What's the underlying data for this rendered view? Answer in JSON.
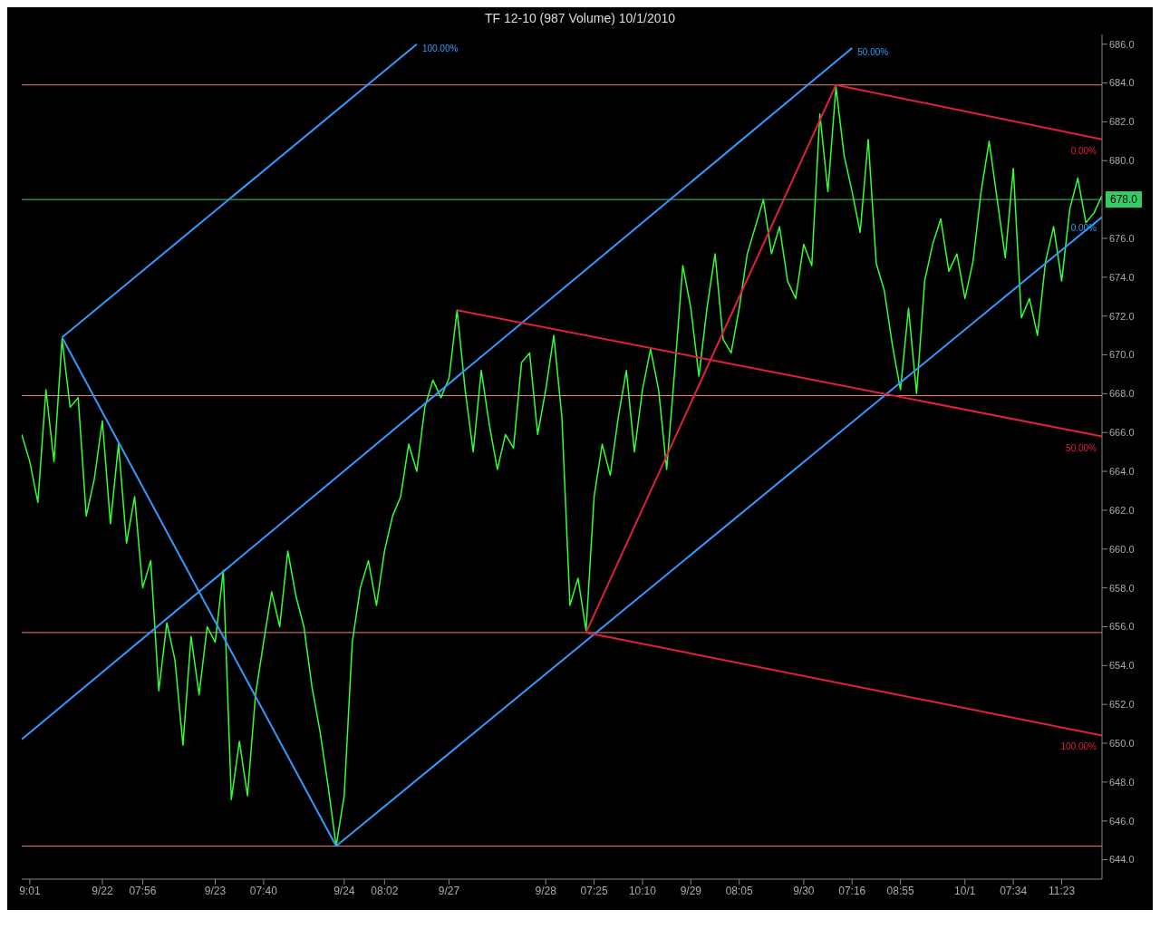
{
  "chart_data": {
    "type": "line",
    "title": "TF 12-10 (987 Volume)  10/1/2010",
    "categories": [
      null,
      "9:01",
      null,
      null,
      null,
      null,
      null,
      null,
      null,
      null,
      "9/22",
      null,
      null,
      null,
      null,
      "07:56",
      null,
      null,
      null,
      null,
      null,
      null,
      null,
      null,
      "9/23",
      null,
      null,
      null,
      null,
      null,
      "07:40",
      null,
      null,
      null,
      null,
      null,
      null,
      null,
      null,
      null,
      "9/24",
      null,
      null,
      null,
      null,
      "08:02",
      null,
      null,
      null,
      null,
      null,
      null,
      null,
      "9/27",
      null,
      null,
      null,
      null,
      null,
      null,
      null,
      null,
      null,
      null,
      null,
      "9/28",
      null,
      null,
      null,
      null,
      null,
      "07:25",
      null,
      null,
      null,
      null,
      null,
      "10:10",
      null,
      null,
      null,
      null,
      null,
      "9/29",
      null,
      null,
      null,
      null,
      null,
      "08:05",
      null,
      null,
      null,
      null,
      null,
      null,
      null,
      "9/30",
      null,
      null,
      null,
      null,
      null,
      "07:16",
      null,
      null,
      null,
      null,
      null,
      "08:55",
      null,
      null,
      null,
      null,
      null,
      null,
      null,
      "10/1",
      null,
      null,
      null,
      null,
      null,
      "07:34",
      null,
      null,
      null,
      null,
      null,
      "11:23",
      null,
      null,
      null,
      null,
      null
    ],
    "ylim": [
      643,
      686.5
    ],
    "yticks": [
      {
        "value": 644,
        "label": "644.0"
      },
      {
        "value": 646,
        "label": "646.0"
      },
      {
        "value": 648,
        "label": "648.0"
      },
      {
        "value": 650,
        "label": "650.0"
      },
      {
        "value": 652,
        "label": "652.0"
      },
      {
        "value": 654,
        "label": "654.0"
      },
      {
        "value": 656,
        "label": "656.0"
      },
      {
        "value": 658,
        "label": "658.0"
      },
      {
        "value": 660,
        "label": "660.0"
      },
      {
        "value": 662,
        "label": "662.0"
      },
      {
        "value": 664,
        "label": "664.0"
      },
      {
        "value": 666,
        "label": "666.0"
      },
      {
        "value": 668,
        "label": "668.0"
      },
      {
        "value": 670,
        "label": "670.0"
      },
      {
        "value": 672,
        "label": "672.0"
      },
      {
        "value": 674,
        "label": "674.0"
      },
      {
        "value": 676,
        "label": "676.0"
      },
      {
        "value": 680,
        "label": "680.0"
      },
      {
        "value": 682,
        "label": "682.0"
      },
      {
        "value": 684,
        "label": "684.0"
      },
      {
        "value": 686,
        "label": "686.0"
      }
    ],
    "marker": "none",
    "line_style": "solid",
    "series": [
      {
        "color": "#33ff33",
        "values": [
          665.9,
          664.5,
          662.4,
          668.2,
          664.5,
          670.8,
          667.3,
          667.8,
          661.7,
          663.6,
          666.6,
          661.3,
          665.4,
          660.3,
          662.7,
          658.0,
          659.4,
          652.7,
          656.2,
          654.3,
          649.9,
          655.5,
          652.5,
          656.0,
          655.2,
          658.9,
          647.1,
          650.1,
          647.3,
          652.5,
          655.2,
          657.8,
          656.0,
          659.9,
          657.6,
          656.0,
          652.9,
          650.6,
          647.8,
          644.7,
          647.3,
          655.2,
          658.0,
          659.4,
          657.1,
          659.9,
          661.7,
          662.7,
          665.4,
          664.0,
          667.3,
          668.7,
          667.8,
          668.8,
          672.3,
          668.2,
          665.0,
          669.2,
          666.4,
          664.1,
          665.9,
          665.2,
          669.6,
          670.1,
          665.9,
          668.2,
          671.0,
          666.8,
          657.1,
          658.5,
          655.8,
          662.7,
          665.4,
          663.8,
          666.8,
          669.2,
          665.0,
          668.2,
          670.3,
          668.2,
          664.1,
          669.2,
          674.6,
          672.4,
          668.9,
          672.4,
          675.2,
          670.8,
          670.1,
          672.4,
          675.2,
          676.6,
          678.0,
          675.2,
          676.6,
          673.8,
          672.9,
          675.7,
          674.6,
          682.4,
          678.4,
          683.8,
          680.3,
          678.4,
          676.3,
          681.1,
          674.7,
          673.3,
          670.5,
          668.2,
          672.4,
          668.0,
          673.8,
          675.7,
          677.0,
          674.3,
          675.2,
          672.9,
          674.8,
          678.4,
          681.0,
          678.0,
          675.0,
          679.6,
          671.9,
          672.9,
          671.0,
          674.8,
          676.6,
          673.8,
          677.5,
          679.1,
          676.8,
          677.3,
          678.2
        ]
      },
      {
        "name": "100.00%",
        "color": "#3399ff",
        "values": [
          null,
          null,
          null,
          null,
          null,
          670.9,
          null,
          null,
          null,
          null,
          null,
          null,
          null,
          null,
          null,
          null,
          null,
          null,
          null,
          null,
          null,
          null,
          null,
          null,
          null,
          null,
          null,
          null,
          null,
          null,
          null,
          null,
          null,
          null,
          null,
          null,
          null,
          null,
          null,
          null,
          null,
          null,
          null,
          null,
          null,
          null,
          null,
          null,
          null,
          686.0,
          null,
          null,
          null,
          null,
          null,
          null,
          null,
          null,
          null,
          null,
          null,
          null,
          null,
          null,
          null,
          null,
          null,
          null,
          null,
          null,
          null,
          null,
          null,
          null,
          null,
          null,
          null,
          null,
          null,
          null,
          null,
          null,
          null,
          null,
          null,
          null,
          null,
          null,
          null,
          null,
          null,
          null,
          null,
          null,
          null,
          null,
          null,
          null,
          null,
          null,
          null,
          null,
          null,
          null,
          null,
          null,
          null,
          null,
          null,
          null,
          null,
          null,
          null,
          null,
          null,
          null,
          null,
          null,
          null,
          null,
          null,
          null,
          null,
          null,
          null,
          null,
          null,
          null,
          null,
          null,
          null,
          null,
          null,
          null,
          null
        ]
      },
      {
        "name": "50.00%",
        "color": "#3399ff",
        "values": [
          650.2,
          null,
          null,
          null,
          null,
          null,
          null,
          null,
          null,
          null,
          null,
          null,
          null,
          null,
          null,
          null,
          null,
          null,
          null,
          null,
          null,
          null,
          null,
          null,
          null,
          null,
          null,
          null,
          null,
          null,
          null,
          null,
          null,
          null,
          null,
          null,
          null,
          null,
          null,
          null,
          null,
          null,
          null,
          null,
          null,
          null,
          null,
          null,
          null,
          null,
          null,
          null,
          null,
          null,
          null,
          null,
          null,
          null,
          null,
          null,
          null,
          null,
          null,
          null,
          null,
          null,
          null,
          null,
          null,
          null,
          null,
          null,
          null,
          null,
          null,
          null,
          null,
          null,
          null,
          null,
          null,
          null,
          null,
          null,
          null,
          null,
          null,
          null,
          null,
          null,
          null,
          null,
          null,
          null,
          null,
          null,
          null,
          null,
          null,
          null,
          null,
          null,
          null,
          685.8,
          null,
          null,
          null,
          null,
          null,
          null,
          null,
          null,
          null,
          null,
          null,
          null,
          null,
          null,
          null,
          null,
          null,
          null,
          null,
          null,
          null,
          null,
          null,
          null,
          null,
          null,
          null,
          null,
          null,
          null,
          null
        ]
      },
      {
        "name": "0.00%",
        "color": "#3399ff",
        "values": [
          null,
          null,
          null,
          null,
          null,
          null,
          null,
          null,
          null,
          null,
          null,
          null,
          null,
          null,
          null,
          null,
          null,
          null,
          null,
          null,
          null,
          null,
          null,
          null,
          null,
          null,
          null,
          null,
          null,
          null,
          null,
          null,
          null,
          null,
          null,
          null,
          null,
          null,
          null,
          644.7,
          null,
          null,
          null,
          null,
          null,
          null,
          null,
          null,
          null,
          null,
          null,
          null,
          null,
          null,
          null,
          null,
          null,
          null,
          null,
          null,
          null,
          null,
          null,
          null,
          null,
          null,
          null,
          null,
          null,
          null,
          null,
          null,
          null,
          null,
          null,
          null,
          null,
          null,
          null,
          null,
          null,
          null,
          null,
          null,
          null,
          null,
          null,
          null,
          null,
          null,
          null,
          null,
          null,
          null,
          null,
          null,
          null,
          null,
          null,
          null,
          null,
          null,
          null,
          null,
          null,
          null,
          null,
          null,
          null,
          null,
          null,
          null,
          null,
          null,
          null,
          null,
          null,
          null,
          null,
          null,
          null,
          null,
          null,
          null,
          null,
          null,
          null,
          null,
          null,
          null,
          null,
          null,
          null,
          null,
          677.1
        ]
      },
      {
        "color": "#3399ff",
        "values": [
          null,
          null,
          null,
          null,
          null,
          670.9,
          null,
          null,
          null,
          null,
          null,
          null,
          null,
          null,
          null,
          null,
          null,
          null,
          null,
          null,
          null,
          null,
          null,
          null,
          null,
          null,
          null,
          null,
          null,
          null,
          null,
          null,
          null,
          null,
          null,
          null,
          null,
          null,
          null,
          644.7,
          null,
          null,
          null,
          null,
          null,
          null,
          null,
          null,
          null,
          null,
          null,
          null,
          null,
          null,
          null,
          null,
          null,
          null,
          null,
          null,
          null,
          null,
          null,
          null,
          null,
          null,
          null,
          null,
          null,
          null,
          null,
          null,
          null,
          null,
          null,
          null,
          null,
          null,
          null,
          null,
          null,
          null,
          null,
          null,
          null,
          null,
          null,
          null,
          null,
          null,
          null,
          null,
          null,
          null,
          null,
          null,
          null,
          null,
          null,
          null,
          null,
          null,
          null,
          null,
          null,
          null,
          null,
          null,
          null,
          null,
          null,
          null,
          null,
          null,
          null,
          null,
          null,
          null,
          null,
          null,
          null,
          null,
          null,
          null,
          null,
          null,
          null,
          null,
          null,
          null,
          null,
          null,
          null,
          null,
          null
        ]
      },
      {
        "color": "#e0203c",
        "values": [
          null,
          null,
          null,
          null,
          null,
          null,
          null,
          null,
          null,
          null,
          null,
          null,
          null,
          null,
          null,
          null,
          null,
          null,
          null,
          null,
          null,
          null,
          null,
          null,
          null,
          null,
          null,
          null,
          null,
          null,
          null,
          null,
          null,
          null,
          null,
          null,
          null,
          null,
          null,
          null,
          null,
          null,
          null,
          null,
          null,
          null,
          null,
          null,
          null,
          null,
          null,
          null,
          null,
          null,
          null,
          null,
          null,
          null,
          null,
          null,
          null,
          null,
          null,
          null,
          null,
          null,
          null,
          null,
          null,
          null,
          655.7,
          null,
          null,
          null,
          null,
          null,
          null,
          null,
          null,
          null,
          null,
          null,
          null,
          null,
          null,
          null,
          null,
          null,
          null,
          null,
          null,
          null,
          null,
          null,
          null,
          null,
          null,
          null,
          null,
          null,
          null,
          683.9,
          null,
          null,
          null,
          null,
          null,
          null,
          null,
          null,
          null,
          null,
          null,
          null,
          null,
          null,
          null,
          null,
          null,
          null,
          null,
          null,
          null,
          null,
          null,
          null,
          null,
          null,
          null,
          null,
          null,
          null,
          null,
          null,
          null
        ]
      },
      {
        "name": "0.00%",
        "color": "#e0203c",
        "values": [
          null,
          null,
          null,
          null,
          null,
          null,
          null,
          null,
          null,
          null,
          null,
          null,
          null,
          null,
          null,
          null,
          null,
          null,
          null,
          null,
          null,
          null,
          null,
          null,
          null,
          null,
          null,
          null,
          null,
          null,
          null,
          null,
          null,
          null,
          null,
          null,
          null,
          null,
          null,
          null,
          null,
          null,
          null,
          null,
          null,
          null,
          null,
          null,
          null,
          null,
          null,
          null,
          null,
          null,
          null,
          null,
          null,
          null,
          null,
          null,
          null,
          null,
          null,
          null,
          null,
          null,
          null,
          null,
          null,
          null,
          null,
          null,
          null,
          null,
          null,
          null,
          null,
          null,
          null,
          null,
          null,
          null,
          null,
          null,
          null,
          null,
          null,
          null,
          null,
          null,
          null,
          null,
          null,
          null,
          null,
          null,
          null,
          null,
          null,
          null,
          null,
          683.9,
          null,
          null,
          null,
          null,
          null,
          null,
          null,
          null,
          null,
          null,
          null,
          null,
          null,
          null,
          null,
          null,
          null,
          null,
          null,
          null,
          null,
          null,
          null,
          null,
          null,
          null,
          null,
          null,
          null,
          null,
          null,
          null,
          681.1
        ]
      },
      {
        "name": "50.00%",
        "color": "#e0203c",
        "values": [
          null,
          null,
          null,
          null,
          null,
          null,
          null,
          null,
          null,
          null,
          null,
          null,
          null,
          null,
          null,
          null,
          null,
          null,
          null,
          null,
          null,
          null,
          null,
          null,
          null,
          null,
          null,
          null,
          null,
          null,
          null,
          null,
          null,
          null,
          null,
          null,
          null,
          null,
          null,
          null,
          null,
          null,
          null,
          null,
          null,
          null,
          null,
          null,
          null,
          null,
          null,
          null,
          null,
          null,
          672.3,
          null,
          null,
          null,
          null,
          null,
          null,
          null,
          null,
          null,
          null,
          null,
          null,
          null,
          null,
          null,
          null,
          null,
          null,
          null,
          null,
          null,
          null,
          null,
          null,
          null,
          null,
          null,
          null,
          null,
          null,
          null,
          null,
          null,
          null,
          null,
          null,
          null,
          null,
          null,
          null,
          null,
          null,
          null,
          null,
          null,
          null,
          null,
          null,
          null,
          null,
          null,
          null,
          null,
          null,
          null,
          null,
          null,
          null,
          null,
          null,
          null,
          null,
          null,
          null,
          null,
          null,
          null,
          null,
          null,
          null,
          null,
          null,
          null,
          null,
          null,
          null,
          null,
          null,
          null,
          665.8
        ]
      },
      {
        "name": "100.00%",
        "color": "#e0203c",
        "values": [
          null,
          null,
          null,
          null,
          null,
          null,
          null,
          null,
          null,
          null,
          null,
          null,
          null,
          null,
          null,
          null,
          null,
          null,
          null,
          null,
          null,
          null,
          null,
          null,
          null,
          null,
          null,
          null,
          null,
          null,
          null,
          null,
          null,
          null,
          null,
          null,
          null,
          null,
          null,
          null,
          null,
          null,
          null,
          null,
          null,
          null,
          null,
          null,
          null,
          null,
          null,
          null,
          null,
          null,
          null,
          null,
          null,
          null,
          null,
          null,
          null,
          null,
          null,
          null,
          null,
          null,
          null,
          null,
          null,
          null,
          655.7,
          null,
          null,
          null,
          null,
          null,
          null,
          null,
          null,
          null,
          null,
          null,
          null,
          null,
          null,
          null,
          null,
          null,
          null,
          null,
          null,
          null,
          null,
          null,
          null,
          null,
          null,
          null,
          null,
          null,
          null,
          null,
          null,
          null,
          null,
          null,
          null,
          null,
          null,
          null,
          null,
          null,
          null,
          null,
          null,
          null,
          null,
          null,
          null,
          null,
          null,
          null,
          null,
          null,
          null,
          null,
          null,
          null,
          null,
          null,
          null,
          null,
          null,
          null,
          650.4
        ]
      }
    ],
    "ref_lines": [
      {
        "axis": "y",
        "value": 683.9,
        "color": "#f08070"
      },
      {
        "axis": "y",
        "value": 667.9,
        "color": "#f08070"
      },
      {
        "axis": "y",
        "value": 655.7,
        "color": "#f08070"
      },
      {
        "axis": "y",
        "value": 644.7,
        "color": "#f08070"
      },
      {
        "axis": "y",
        "value": 678.0,
        "label": "678.0",
        "color": "#33cc66"
      }
    ]
  }
}
